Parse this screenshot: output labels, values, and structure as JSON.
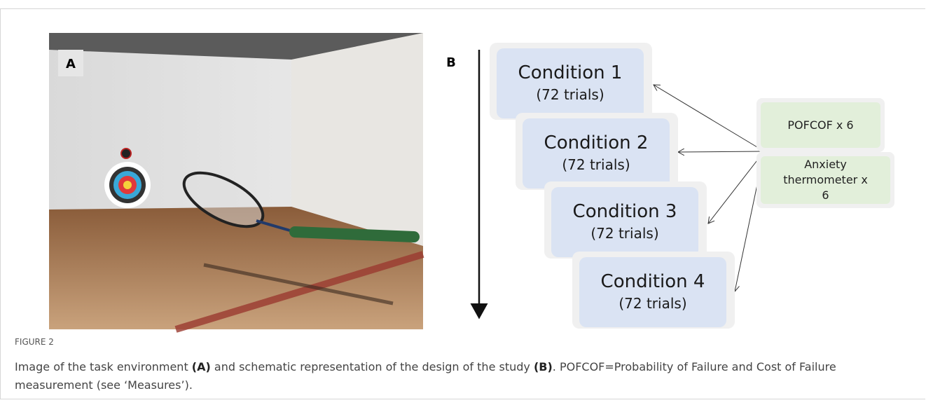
{
  "figure": {
    "panel_a_label": "A",
    "panel_b_label": "B",
    "conditions": [
      {
        "title": "Condition 1",
        "trials": "(72 trials)"
      },
      {
        "title": "Condition 2",
        "trials": "(72 trials)"
      },
      {
        "title": "Condition 3",
        "trials": "(72 trials)"
      },
      {
        "title": "Condition 4",
        "trials": "(72 trials)"
      }
    ],
    "measures": [
      "POFCOF x 6",
      "Anxiety thermometer x 6"
    ],
    "caption": {
      "label": "FIGURE 2",
      "parts": [
        "Image of the task environment ",
        "(A)",
        " and schematic representation of the design of the study ",
        "(B)",
        ". POFCOF=Probability of Failure and Cost of Failure measurement (see ‘Measures’)."
      ]
    }
  }
}
